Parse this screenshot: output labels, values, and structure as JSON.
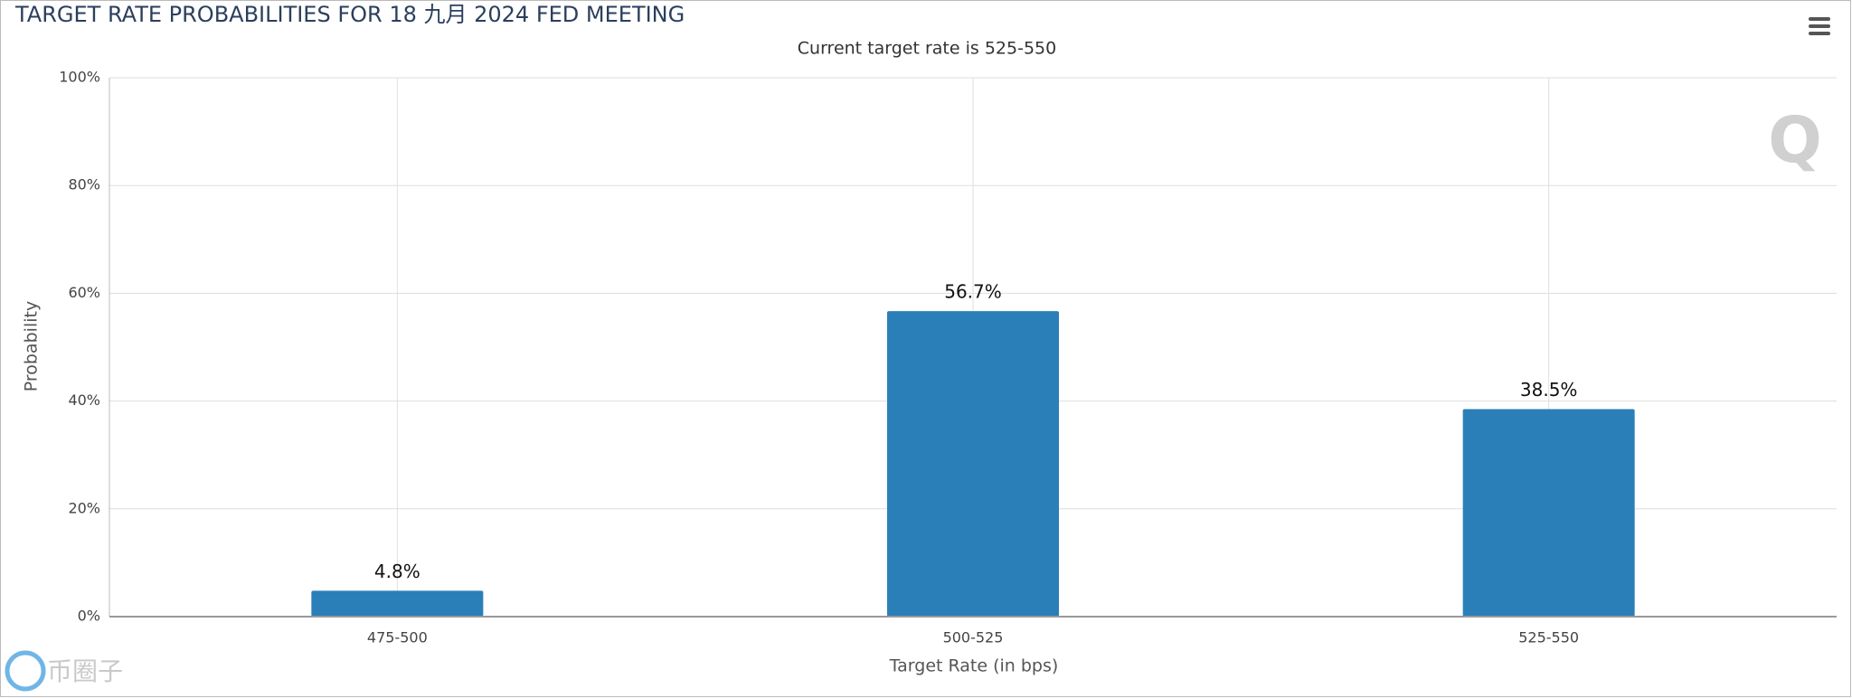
{
  "chart_data": {
    "type": "bar",
    "title": "TARGET RATE PROBABILITIES FOR 18 九月 2024 FED MEETING",
    "subtitle": "Current target rate is 525-550",
    "x_label": "Target Rate (in bps)",
    "y_label": "Probability",
    "categories": [
      "475-500",
      "500-525",
      "525-550"
    ],
    "values": [
      4.8,
      56.7,
      38.5
    ],
    "value_labels": [
      "4.8%",
      "56.7%",
      "38.5%"
    ],
    "color": "#2a7fb8",
    "ylim": [
      0,
      100
    ],
    "yticks": [
      {
        "value": 0,
        "label": "0%"
      },
      {
        "value": 20,
        "label": "20%"
      },
      {
        "value": 40,
        "label": "40%"
      },
      {
        "value": 60,
        "label": "60%"
      },
      {
        "value": 80,
        "label": "80%"
      },
      {
        "value": 100,
        "label": "100%"
      }
    ],
    "grid": true,
    "watermark": "币圈子"
  }
}
